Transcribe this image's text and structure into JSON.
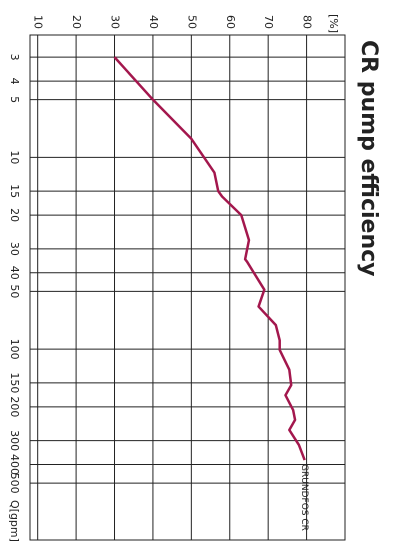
{
  "chart_data": {
    "type": "line",
    "title": "CR pump efficiency",
    "x_label": "Q[gpm]",
    "y_label": "[%]",
    "annotation": "GRUNDFOS CR",
    "x_log": true,
    "grid": true,
    "x": [
      3,
      5,
      8,
      12,
      15,
      16,
      20,
      27,
      34,
      35,
      49,
      60,
      75,
      90,
      101,
      128,
      154,
      174,
      208,
      234,
      264,
      316,
      379
    ],
    "series": [
      {
        "name": "CR",
        "color": "#a3174d",
        "values": [
          30,
          40,
          50,
          56,
          57,
          58,
          63,
          65,
          64,
          64.5,
          69,
          67.5,
          72,
          73,
          73,
          75.5,
          76,
          74.5,
          76.5,
          77,
          75.5,
          78,
          79.5
        ]
      }
    ],
    "xlim": [
      2.3,
      990
    ],
    "xticks": [
      3,
      4,
      5,
      10,
      15,
      20,
      30,
      40,
      50,
      100,
      150,
      200,
      300,
      400,
      500
    ],
    "ylim": [
      8,
      90
    ],
    "yticks": [
      10,
      20,
      30,
      40,
      50,
      60,
      70,
      80
    ]
  }
}
